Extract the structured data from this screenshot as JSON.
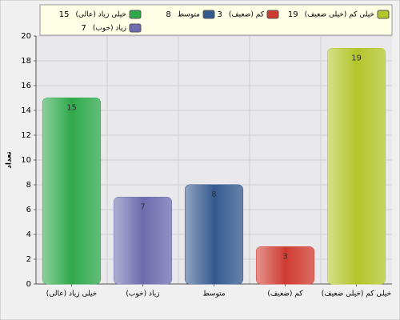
{
  "chart_data": {
    "type": "bar",
    "y_label": "تعداد",
    "categories": [
      "خیلی زیاد (عالی)",
      "زیاد (خوب)",
      "متوسط",
      "کم (ضعیف)",
      "خیلی کم (خیلی ضعیف)"
    ],
    "values": [
      15,
      7,
      8,
      3,
      19
    ],
    "colors": [
      "#2ea84a",
      "#6c6cae",
      "#34598e",
      "#cf3b30",
      "#b2c52a"
    ],
    "ylim": [
      0,
      20
    ],
    "yticks": [
      0,
      2,
      4,
      6,
      8,
      10,
      12,
      14,
      16,
      18,
      20
    ],
    "grid": true,
    "legend": "top"
  }
}
